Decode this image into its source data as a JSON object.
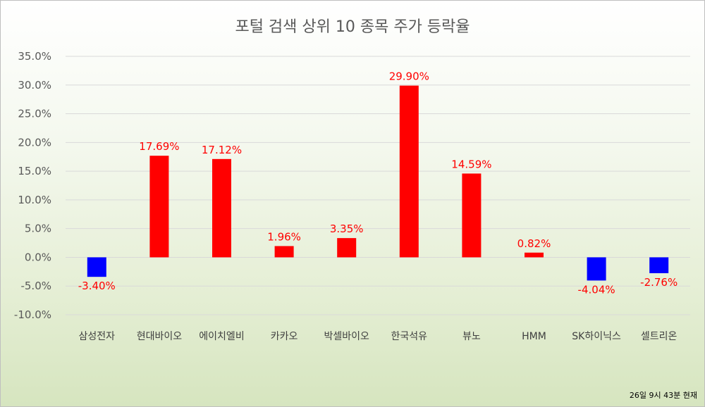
{
  "chart_data": {
    "type": "bar",
    "title": "포털 검색 상위 10 종목 주가 등락율",
    "categories": [
      "삼성전자",
      "현대바이오",
      "에이치엘비",
      "카카오",
      "박셀바이오",
      "한국석유",
      "뷰노",
      "HMM",
      "SK하이닉스",
      "셀트리온"
    ],
    "values": [
      -3.4,
      17.69,
      17.12,
      1.96,
      3.35,
      29.9,
      14.59,
      0.82,
      -4.04,
      -2.76
    ],
    "data_labels": [
      "-3.40%",
      "17.69%",
      "17.12%",
      "1.96%",
      "3.35%",
      "29.90%",
      "14.59%",
      "0.82%",
      "-4.04%",
      "-2.76%"
    ],
    "ytick_labels": [
      "35.0%",
      "30.0%",
      "25.0%",
      "20.0%",
      "15.0%",
      "10.0%",
      "5.0%",
      "0.0%",
      "-5.0%",
      "-10.0%"
    ],
    "ylim": [
      -10,
      35
    ],
    "xlabel": "",
    "ylabel": "",
    "grid": true,
    "colors": {
      "positive": "#ff0000",
      "negative": "#0000ff",
      "positive_label": "#ff0000",
      "negative_label": "#ff0000"
    }
  },
  "footnote": "26일 9시 43분 현재"
}
